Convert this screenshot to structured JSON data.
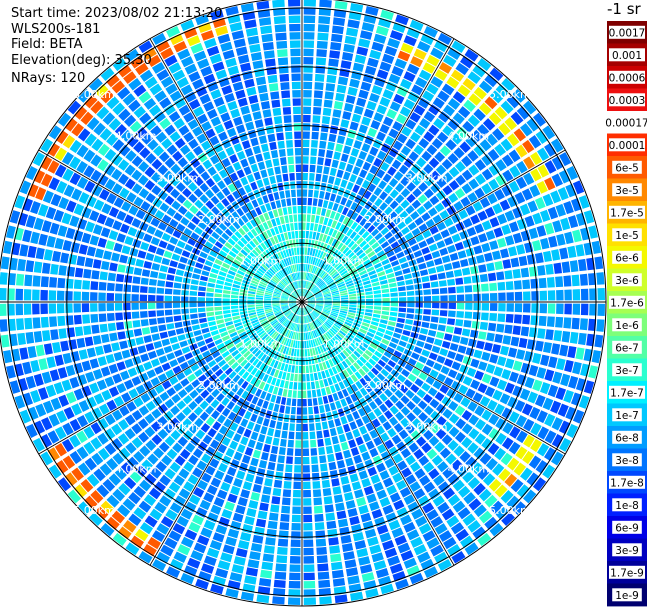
{
  "header": {
    "start_time": "Start time: 2023/08/02 21:13:20",
    "instrument": "WLS200s-181",
    "field": "Field: BETA",
    "elevation": "Elevation(deg): 35.30",
    "nrays": "NRays: 120"
  },
  "colorbar": {
    "title": "-1 sr",
    "levels": [
      {
        "label": "0.0017",
        "color": "#7f0000"
      },
      {
        "label": "0.001",
        "color": "#a50000"
      },
      {
        "label": "0.0006",
        "color": "#cc0000"
      },
      {
        "label": "0.0003",
        "color": "#ee1010"
      },
      {
        "label": "0.00017",
        "color": "#ffffff"
      },
      {
        "label": "0.0001",
        "color": "#ff2e00"
      },
      {
        "label": "6e-5",
        "color": "#ff5a00"
      },
      {
        "label": "3e-5",
        "color": "#ff8800"
      },
      {
        "label": "1.7e-5",
        "color": "#ffb400"
      },
      {
        "label": "1e-5",
        "color": "#ffe000"
      },
      {
        "label": "6e-6",
        "color": "#f4f800"
      },
      {
        "label": "3e-6",
        "color": "#cfff2a"
      },
      {
        "label": "1.7e-6",
        "color": "#a6ff52"
      },
      {
        "label": "1e-6",
        "color": "#7dff7a"
      },
      {
        "label": "6e-7",
        "color": "#52ffa6"
      },
      {
        "label": "3e-7",
        "color": "#2affd0"
      },
      {
        "label": "1.7e-7",
        "color": "#00f0ff"
      },
      {
        "label": "1e-7",
        "color": "#00c8ff"
      },
      {
        "label": "6e-8",
        "color": "#009cff"
      },
      {
        "label": "3e-8",
        "color": "#0074ff"
      },
      {
        "label": "1.7e-8",
        "color": "#0048ff"
      },
      {
        "label": "1e-8",
        "color": "#0020ff"
      },
      {
        "label": "6e-9",
        "color": "#0000e6"
      },
      {
        "label": "3e-9",
        "color": "#0000c0"
      },
      {
        "label": "1.7e-9",
        "color": "#00009a"
      },
      {
        "label": "1e-9",
        "color": "#000070"
      }
    ]
  },
  "chart_data": {
    "type": "heatmap",
    "projection": "polar",
    "field": "BETA",
    "units": "sr-1",
    "nrays": 120,
    "max_range_km": 5.0,
    "range_rings_km": [
      1,
      2,
      3,
      4,
      5
    ],
    "range_labels": [
      "1.00km",
      "2.00km",
      "3.00km",
      "4.00km",
      "5.00km"
    ],
    "label_positions": [
      "NE",
      "NW",
      "SW",
      "SE"
    ],
    "radial_spokes_deg": [
      0,
      30,
      60,
      90,
      120,
      150,
      180,
      210,
      240,
      270,
      300,
      330
    ],
    "background_level": "3e-8 to 1e-7",
    "near_range_level": "1e-7 to 3e-7",
    "high_return_arcs": [
      {
        "azimuth_deg_from": 290,
        "azimuth_deg_to": 345,
        "range_km": [
          4.7,
          5.0
        ],
        "level": "6e-5"
      },
      {
        "azimuth_deg_from": 210,
        "azimuth_deg_to": 240,
        "range_km": [
          4.7,
          5.0
        ],
        "level": "6e-5"
      },
      {
        "azimuth_deg_from": 20,
        "azimuth_deg_to": 65,
        "range_km": [
          4.4,
          4.8
        ],
        "level": "6e-6"
      },
      {
        "azimuth_deg_from": 120,
        "azimuth_deg_to": 135,
        "range_km": [
          4.5,
          4.8
        ],
        "level": "6e-6"
      }
    ]
  }
}
